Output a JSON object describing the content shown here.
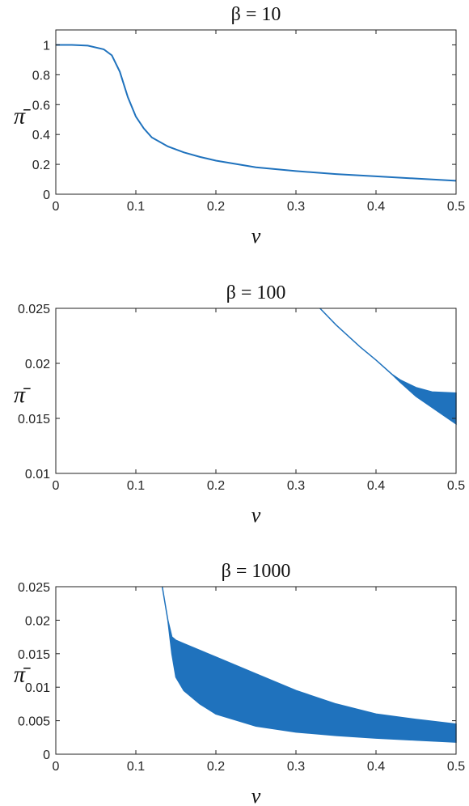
{
  "chart_data": [
    {
      "type": "line",
      "title": "β = 10",
      "x_label": "v",
      "y_label": "π̄",
      "color": "#1f72bd",
      "xlim": [
        0,
        0.5
      ],
      "ylim": [
        0,
        1.1
      ],
      "xticks": [
        0,
        0.1,
        0.2,
        0.3,
        0.4,
        0.5
      ],
      "yticks": [
        0,
        0.2,
        0.4,
        0.6,
        0.8,
        1
      ],
      "x": [
        0,
        0.02,
        0.04,
        0.06,
        0.07,
        0.08,
        0.09,
        0.1,
        0.11,
        0.12,
        0.14,
        0.16,
        0.18,
        0.2,
        0.25,
        0.3,
        0.35,
        0.4,
        0.45,
        0.5
      ],
      "values": [
        1,
        1,
        0.995,
        0.97,
        0.93,
        0.82,
        0.65,
        0.52,
        0.44,
        0.38,
        0.32,
        0.28,
        0.25,
        0.225,
        0.18,
        0.155,
        0.135,
        0.12,
        0.105,
        0.09
      ]
    },
    {
      "type": "band",
      "title": "β = 100",
      "x_label": "v",
      "y_label": "π̄",
      "color": "#1f72bd",
      "xlim": [
        0,
        0.5
      ],
      "ylim": [
        0.01,
        0.025
      ],
      "xticks": [
        0,
        0.1,
        0.2,
        0.3,
        0.4,
        0.5
      ],
      "yticks": [
        0.01,
        0.015,
        0.02,
        0.025
      ],
      "x": [
        0.33,
        0.35,
        0.38,
        0.4,
        0.42,
        0.43,
        0.45,
        0.47,
        0.5
      ],
      "upper": [
        0.025,
        0.0235,
        0.0215,
        0.0203,
        0.019,
        0.0185,
        0.0178,
        0.0174,
        0.0173
      ],
      "lower": [
        0.025,
        0.0235,
        0.0215,
        0.0203,
        0.019,
        0.0183,
        0.017,
        0.016,
        0.0145
      ]
    },
    {
      "type": "band",
      "title": "β = 1000",
      "x_label": "v",
      "y_label": "π̄",
      "color": "#1f72bd",
      "xlim": [
        0,
        0.5
      ],
      "ylim": [
        0,
        0.025
      ],
      "xticks": [
        0,
        0.1,
        0.2,
        0.3,
        0.4,
        0.5
      ],
      "yticks": [
        0,
        0.005,
        0.01,
        0.015,
        0.02,
        0.025
      ],
      "x": [
        0.133,
        0.14,
        0.145,
        0.15,
        0.16,
        0.18,
        0.2,
        0.25,
        0.3,
        0.35,
        0.4,
        0.45,
        0.5
      ],
      "upper": [
        0.025,
        0.02,
        0.0175,
        0.017,
        0.0165,
        0.0155,
        0.0145,
        0.012,
        0.0095,
        0.0075,
        0.006,
        0.0052,
        0.0045
      ],
      "lower": [
        0.025,
        0.02,
        0.015,
        0.0115,
        0.0095,
        0.0075,
        0.006,
        0.0042,
        0.0033,
        0.0028,
        0.0024,
        0.0021,
        0.0018
      ]
    }
  ]
}
